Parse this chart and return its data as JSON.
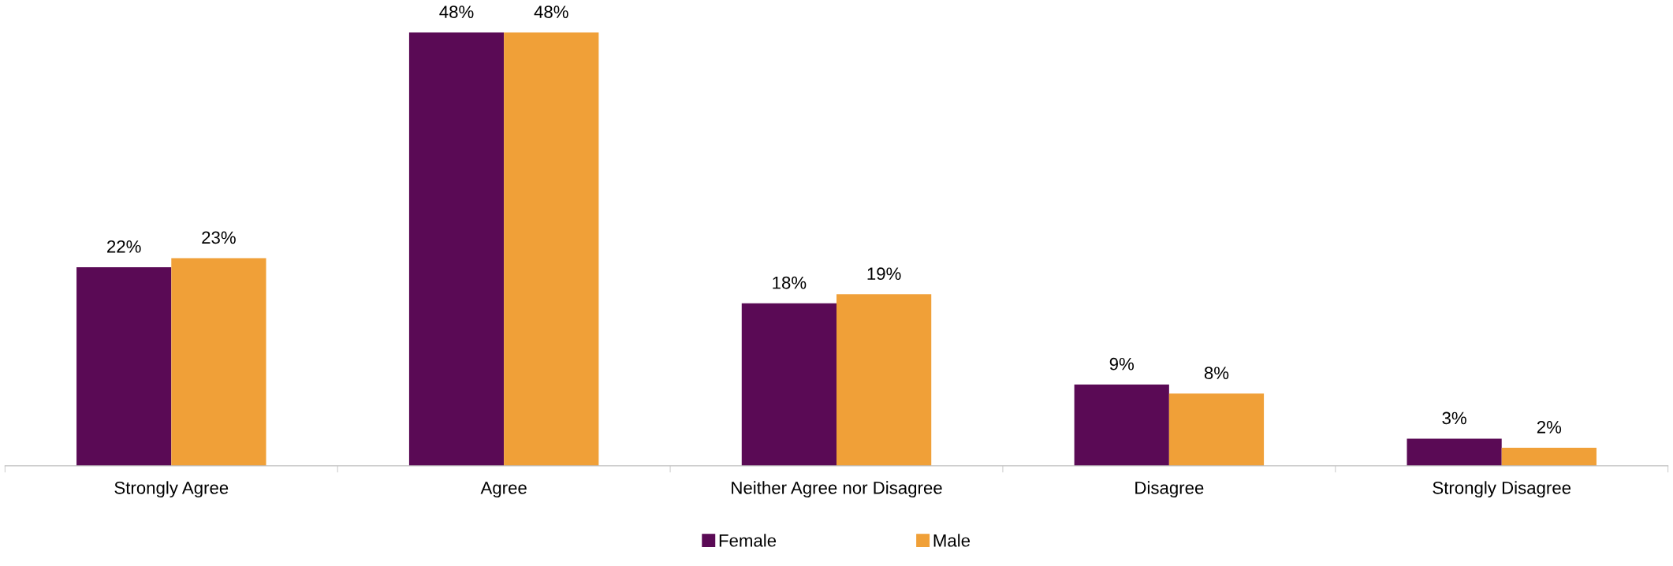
{
  "chart_data": {
    "type": "bar",
    "categories": [
      "Strongly Agree",
      "Agree",
      "Neither Agree nor Disagree",
      "Disagree",
      "Strongly Disagree"
    ],
    "series": [
      {
        "name": "Female",
        "color": "#5a0a55",
        "values": [
          22,
          48,
          18,
          9,
          3
        ],
        "value_labels": [
          "22%",
          "48%",
          "18%",
          "9%",
          "3%"
        ]
      },
      {
        "name": "Male",
        "color": "#f0a038",
        "values": [
          23,
          48,
          19,
          8,
          2
        ],
        "value_labels": [
          "23%",
          "48%",
          "19%",
          "8%",
          "2%"
        ]
      }
    ],
    "legend": "bottom",
    "grid": false
  }
}
